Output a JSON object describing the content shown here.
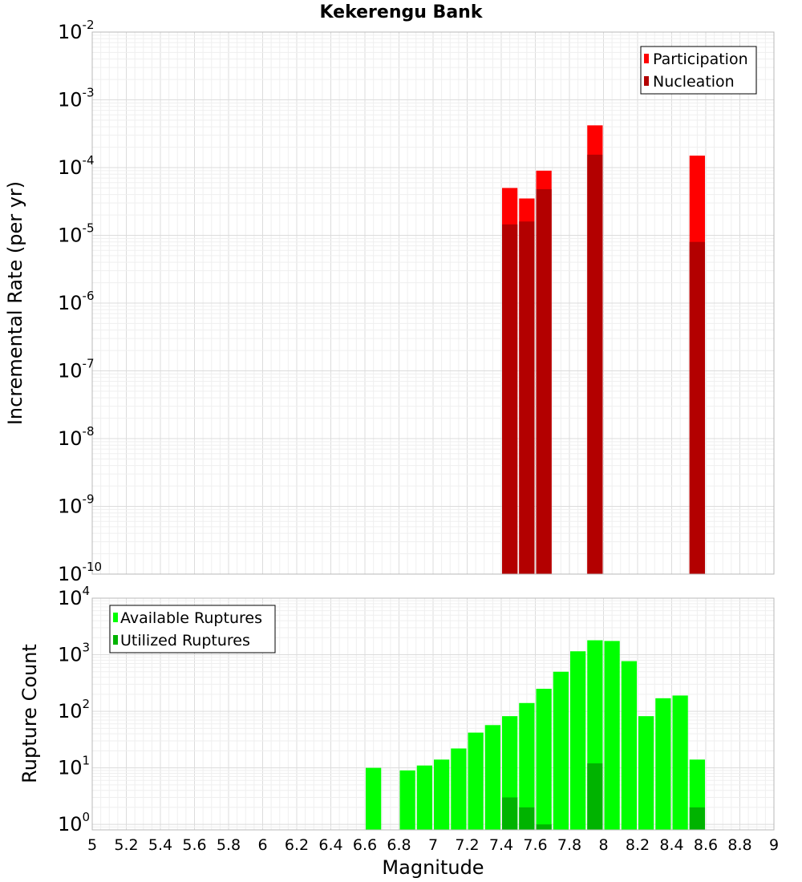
{
  "chart_data": [
    {
      "type": "bar",
      "title": "Kekerengu Bank",
      "xlabel": "Magnitude",
      "ylabel": "Incremental Rate (per yr)",
      "yscale": "log",
      "ylim": [
        1e-10,
        0.01
      ],
      "xlim": [
        5,
        9
      ],
      "bar_width": 0.1,
      "grid": true,
      "legend_position": "top-right",
      "y_tick_labels": [
        {
          "base": "10",
          "exp": "-10"
        },
        {
          "base": "10",
          "exp": "-9"
        },
        {
          "base": "10",
          "exp": "-8"
        },
        {
          "base": "10",
          "exp": "-7"
        },
        {
          "base": "10",
          "exp": "-6"
        },
        {
          "base": "10",
          "exp": "-5"
        },
        {
          "base": "10",
          "exp": "-4"
        },
        {
          "base": "10",
          "exp": "-3"
        },
        {
          "base": "10",
          "exp": "-2"
        }
      ],
      "series": [
        {
          "name": "Participation",
          "color": "#ff0000",
          "x": [
            7.45,
            7.55,
            7.65,
            7.95,
            8.55
          ],
          "values": [
            5e-05,
            3.5e-05,
            9e-05,
            0.00042,
            0.00015
          ]
        },
        {
          "name": "Nucleation",
          "color": "#b30000",
          "x": [
            7.45,
            7.55,
            7.65,
            7.95,
            8.55
          ],
          "values": [
            1.45e-05,
            1.6e-05,
            4.8e-05,
            0.000155,
            8e-06
          ]
        }
      ]
    },
    {
      "type": "bar",
      "xlabel": "Magnitude",
      "ylabel": "Rupture Count",
      "yscale": "log",
      "ylim": [
        0.8,
        10000
      ],
      "xlim": [
        5,
        9
      ],
      "bar_width": 0.1,
      "grid": true,
      "legend_position": "top-left",
      "x_tick_labels": [
        "5",
        "5.2",
        "5.4",
        "5.6",
        "5.8",
        "6",
        "6.2",
        "6.4",
        "6.6",
        "6.8",
        "7",
        "7.2",
        "7.4",
        "7.6",
        "7.8",
        "8",
        "8.2",
        "8.4",
        "8.6",
        "8.8",
        "9"
      ],
      "y_tick_labels": [
        {
          "base": "10",
          "exp": "0"
        },
        {
          "base": "10",
          "exp": "1"
        },
        {
          "base": "10",
          "exp": "2"
        },
        {
          "base": "10",
          "exp": "3"
        },
        {
          "base": "10",
          "exp": "4"
        }
      ],
      "series": [
        {
          "name": "Available Ruptures",
          "color": "#00ff00",
          "x": [
            6.65,
            6.85,
            6.95,
            7.05,
            7.15,
            7.25,
            7.35,
            7.45,
            7.55,
            7.65,
            7.75,
            7.85,
            7.95,
            8.05,
            8.15,
            8.25,
            8.35,
            8.45,
            8.55
          ],
          "values": [
            10,
            9,
            11,
            14,
            22,
            42,
            57,
            82,
            140,
            250,
            500,
            1150,
            1800,
            1750,
            770,
            82,
            170,
            190,
            14
          ]
        },
        {
          "name": "Utilized Ruptures",
          "color": "#00b300",
          "x": [
            7.45,
            7.55,
            7.65,
            7.95,
            8.55
          ],
          "values": [
            3,
            2,
            1,
            12,
            2
          ]
        }
      ]
    }
  ]
}
